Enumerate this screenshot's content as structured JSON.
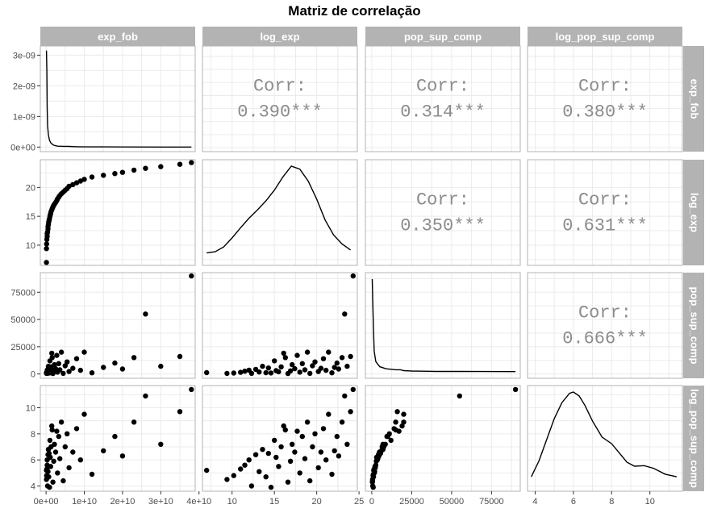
{
  "title": "Matriz de correlação",
  "variables": [
    "exp_fob",
    "log_exp",
    "pop_sup_comp",
    "log_pop_sup_comp"
  ],
  "colors": {
    "strip": "#b3b3b3",
    "grid": "#ebebeb",
    "border": "#b3b3b3",
    "points": "#000000",
    "corr_text": "#8c8c8c"
  },
  "chart_data": {
    "type": "scatter",
    "layout": "pairs-matrix",
    "title": "Matriz de correlação",
    "variables": [
      "exp_fob",
      "log_exp",
      "pop_sup_comp",
      "log_pop_sup_comp"
    ],
    "axes": {
      "exp_fob": {
        "range": [
          -1500000000.0,
          39000000000.0
        ],
        "ticks": [
          0,
          10000000000.0,
          20000000000.0,
          30000000000.0,
          40000000000.0
        ],
        "tick_labels": [
          "0e+00",
          "1e+10",
          "2e+10",
          "3e+10",
          "4e+10"
        ]
      },
      "log_exp": {
        "range": [
          6.5,
          24.8
        ],
        "ticks": [
          10,
          15,
          20,
          25
        ],
        "tick_labels": [
          "10",
          "15",
          "20",
          "25"
        ]
      },
      "pop_sup_comp": {
        "range": [
          -4000,
          93000
        ],
        "ticks": [
          0,
          25000,
          50000,
          75000
        ],
        "tick_labels": [
          "0",
          "25000",
          "50000",
          "75000"
        ]
      },
      "log_pop_sup_comp": {
        "range": [
          3.6,
          11.7
        ],
        "ticks": [
          4,
          6,
          8,
          10
        ],
        "tick_labels": [
          "4",
          "6",
          "8",
          "10"
        ]
      }
    },
    "density_axis": {
      "range": [
        -1.5e-10,
        3.3e-09
      ],
      "ticks": [
        0,
        1e-09,
        2e-09,
        3e-09
      ],
      "tick_labels": [
        "0e+00",
        "1e-09",
        "2e-09",
        "3e-09"
      ]
    },
    "correlations": [
      {
        "row": 0,
        "col": 1,
        "label": "Corr:",
        "value": "0.390***"
      },
      {
        "row": 0,
        "col": 2,
        "label": "Corr:",
        "value": "0.314***"
      },
      {
        "row": 0,
        "col": 3,
        "label": "Corr:",
        "value": "0.380***"
      },
      {
        "row": 1,
        "col": 2,
        "label": "Corr:",
        "value": "0.350***"
      },
      {
        "row": 1,
        "col": 3,
        "label": "Corr:",
        "value": "0.631***"
      },
      {
        "row": 2,
        "col": 3,
        "label": "Corr:",
        "value": "0.666***"
      }
    ],
    "densities": [
      [
        [
          100000000.0,
          3.15e-09
        ],
        [
          200000000.0,
          2.5e-09
        ],
        [
          300000000.0,
          1.3e-09
        ],
        [
          400000000.0,
          7e-10
        ],
        [
          600000000.0,
          4e-10
        ],
        [
          900000000.0,
          2.2e-10
        ],
        [
          1300000000.0,
          1.2e-10
        ],
        [
          2000000000.0,
          6e-11
        ],
        [
          3000000000.0,
          3e-11
        ],
        [
          4500000000.0,
          2.5e-11
        ],
        [
          6000000000.0,
          2e-11
        ],
        [
          8000000000.0,
          1e-11
        ],
        [
          10000000000.0,
          5e-12
        ],
        [
          14000000000.0,
          5e-12
        ],
        [
          20000000000.0,
          2e-12
        ],
        [
          30000000000.0,
          1e-12
        ],
        [
          38000000000.0,
          1e-12
        ]
      ],
      [
        [
          7.0,
          0.01
        ],
        [
          8.0,
          0.012
        ],
        [
          9.0,
          0.02
        ],
        [
          10.0,
          0.035
        ],
        [
          11.0,
          0.052
        ],
        [
          12.0,
          0.068
        ],
        [
          13.0,
          0.082
        ],
        [
          14.0,
          0.097
        ],
        [
          15.0,
          0.115
        ],
        [
          16.0,
          0.137
        ],
        [
          17.0,
          0.155
        ],
        [
          18.0,
          0.15
        ],
        [
          19.0,
          0.13
        ],
        [
          20.0,
          0.1
        ],
        [
          21.0,
          0.065
        ],
        [
          22.0,
          0.04
        ],
        [
          23.0,
          0.025
        ],
        [
          24.0,
          0.015
        ]
      ],
      [
        [
          300,
          0.9
        ],
        [
          600,
          0.7
        ],
        [
          1000,
          0.45
        ],
        [
          1500,
          0.2
        ],
        [
          2500,
          0.1
        ],
        [
          3500,
          0.08
        ],
        [
          5000,
          0.05
        ],
        [
          7000,
          0.04
        ],
        [
          9000,
          0.03
        ],
        [
          12000,
          0.025
        ],
        [
          15000,
          0.02
        ],
        [
          18000,
          0.02
        ],
        [
          20000,
          0.012
        ],
        [
          25000,
          0.008
        ],
        [
          32000,
          0.006
        ],
        [
          40000,
          0.004
        ],
        [
          55000,
          0.004
        ],
        [
          70000,
          0.003
        ],
        [
          90000,
          0.002
        ]
      ],
      [
        [
          3.8,
          0.03
        ],
        [
          4.2,
          0.09
        ],
        [
          4.6,
          0.17
        ],
        [
          5.0,
          0.25
        ],
        [
          5.4,
          0.31
        ],
        [
          5.8,
          0.345
        ],
        [
          6.0,
          0.35
        ],
        [
          6.3,
          0.335
        ],
        [
          6.6,
          0.3
        ],
        [
          7.0,
          0.24
        ],
        [
          7.5,
          0.18
        ],
        [
          8.0,
          0.155
        ],
        [
          8.4,
          0.12
        ],
        [
          8.8,
          0.085
        ],
        [
          9.2,
          0.07
        ],
        [
          9.7,
          0.072
        ],
        [
          10.2,
          0.062
        ],
        [
          10.8,
          0.04
        ],
        [
          11.4,
          0.03
        ]
      ]
    ],
    "points": [
      [
        100000000.0,
        7.0,
        1200,
        5.2
      ],
      [
        100000000.0,
        9.4,
        500,
        4.5
      ],
      [
        150000000.0,
        10.2,
        800,
        4.8
      ],
      [
        200000000.0,
        11.0,
        1500,
        5.3
      ],
      [
        300000000.0,
        11.5,
        2500,
        5.6
      ],
      [
        300000000.0,
        12.0,
        3500,
        6.0
      ],
      [
        400000000.0,
        12.3,
        600,
        4.0
      ],
      [
        500000000.0,
        12.8,
        4200,
        6.4
      ],
      [
        500000000.0,
        13.2,
        1800,
        5.1
      ],
      [
        600000000.0,
        13.6,
        7000,
        6.8
      ],
      [
        700000000.0,
        14.0,
        1100,
        4.7
      ],
      [
        800000000.0,
        14.3,
        5500,
        6.5
      ],
      [
        900000000.0,
        14.6,
        900,
        3.9
      ],
      [
        1000000000.0,
        15.0,
        12000,
        7.5
      ],
      [
        1100000000.0,
        15.2,
        3000,
        6.2
      ],
      [
        1200000000.0,
        15.5,
        2000,
        5.5
      ],
      [
        1300000000.0,
        15.8,
        6500,
        7.0
      ],
      [
        1500000000.0,
        16.1,
        19000,
        8.6
      ],
      [
        1600000000.0,
        16.3,
        15000,
        8.3
      ],
      [
        1800000000.0,
        16.6,
        400,
        4.3
      ],
      [
        2000000000.0,
        16.9,
        2800,
        5.9
      ],
      [
        2200000000.0,
        17.1,
        8500,
        7.2
      ],
      [
        2500000000.0,
        17.4,
        4800,
        6.6
      ],
      [
        2800000000.0,
        17.7,
        17000,
        8.2
      ],
      [
        3000000000.0,
        18.0,
        1600,
        5.0
      ],
      [
        3300000000.0,
        18.3,
        9500,
        7.8
      ],
      [
        3600000000.0,
        18.6,
        3800,
        6.1
      ],
      [
        4000000000.0,
        18.9,
        20000,
        8.9
      ],
      [
        4500000000.0,
        19.2,
        500,
        4.4
      ],
      [
        5000000000.0,
        19.5,
        7500,
        7.0
      ],
      [
        5500000000.0,
        19.8,
        11000,
        8.0
      ],
      [
        6000000000.0,
        20.2,
        2200,
        5.4
      ],
      [
        7000000000.0,
        20.5,
        5200,
        6.6
      ],
      [
        8000000000.0,
        20.8,
        14000,
        8.4
      ],
      [
        9000000000.0,
        21.1,
        3300,
        6.0
      ],
      [
        10000000000.0,
        21.4,
        20000,
        9.5
      ],
      [
        12000000000.0,
        21.8,
        1000,
        4.9
      ],
      [
        15000000000.0,
        22.1,
        6000,
        6.7
      ],
      [
        18000000000.0,
        22.4,
        10000,
        7.8
      ],
      [
        20000000000.0,
        22.6,
        4500,
        6.3
      ],
      [
        23000000000.0,
        23.0,
        15000,
        8.9
      ],
      [
        26000000000.0,
        23.3,
        55000,
        10.9
      ],
      [
        30000000000.0,
        23.6,
        7000,
        7.2
      ],
      [
        35000000000.0,
        24.0,
        16000,
        9.7
      ],
      [
        38000000000.0,
        24.3,
        90000,
        11.4
      ]
    ]
  }
}
